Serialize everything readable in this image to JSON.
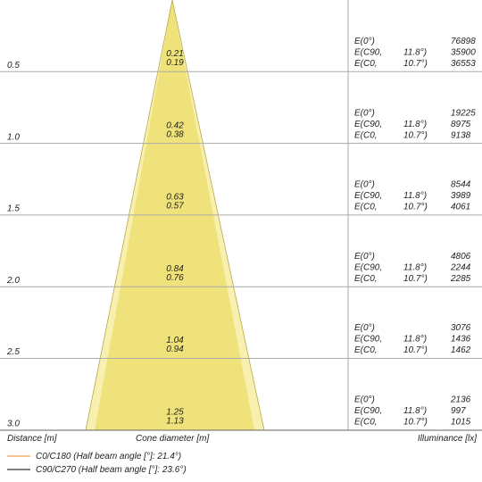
{
  "rows": [
    {
      "distance": "0.5",
      "diameters": [
        "0.21",
        "0.19"
      ],
      "illuminance": [
        {
          "label": "E(0°)",
          "value": "76898"
        },
        {
          "label": "E(C90,",
          "angle": "11.8°)",
          "value": "35900"
        },
        {
          "label": "E(C0,",
          "angle": "10.7°)",
          "value": "36553"
        }
      ]
    },
    {
      "distance": "1.0",
      "diameters": [
        "0.42",
        "0.38"
      ],
      "illuminance": [
        {
          "label": "E(0°)",
          "value": "19225"
        },
        {
          "label": "E(C90,",
          "angle": "11.8°)",
          "value": "8975"
        },
        {
          "label": "E(C0,",
          "angle": "10.7°)",
          "value": "9138"
        }
      ]
    },
    {
      "distance": "1.5",
      "diameters": [
        "0.63",
        "0.57"
      ],
      "illuminance": [
        {
          "label": "E(0°)",
          "value": "8544"
        },
        {
          "label": "E(C90,",
          "angle": "11.8°)",
          "value": "3989"
        },
        {
          "label": "E(C0,",
          "angle": "10.7°)",
          "value": "4061"
        }
      ]
    },
    {
      "distance": "2.0",
      "diameters": [
        "0.84",
        "0.76"
      ],
      "illuminance": [
        {
          "label": "E(0°)",
          "value": "4806"
        },
        {
          "label": "E(C90,",
          "angle": "11.8°)",
          "value": "2244"
        },
        {
          "label": "E(C0,",
          "angle": "10.7°)",
          "value": "2285"
        }
      ]
    },
    {
      "distance": "2.5",
      "diameters": [
        "1.04",
        "0.94"
      ],
      "illuminance": [
        {
          "label": "E(0°)",
          "value": "3076"
        },
        {
          "label": "E(C90,",
          "angle": "11.8°)",
          "value": "1436"
        },
        {
          "label": "E(C0,",
          "angle": "10.7°)",
          "value": "1462"
        }
      ]
    },
    {
      "distance": "3.0",
      "diameters": [
        "1.25",
        "1.13"
      ],
      "illuminance": [
        {
          "label": "E(0°)",
          "value": "2136"
        },
        {
          "label": "E(C90,",
          "angle": "11.8°)",
          "value": "997"
        },
        {
          "label": "E(C0,",
          "angle": "10.7°)",
          "value": "1015"
        }
      ]
    }
  ],
  "footer": {
    "distance": "Distance [m]",
    "diameter": "Cone diameter [m]",
    "illuminance": "Illuminance [lx]"
  },
  "legend": [
    "C0/C180 (Half beam angle [°]: 21.4°)",
    "C90/C270 (Half beam angle [°]: 23.6°)"
  ]
}
